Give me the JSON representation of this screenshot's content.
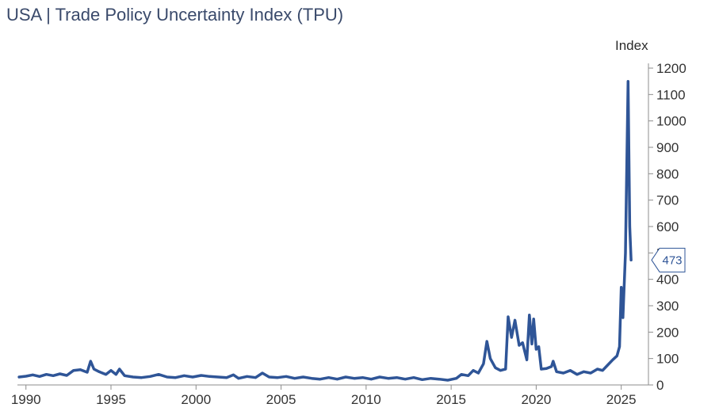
{
  "chart_data": {
    "type": "line",
    "title": "USA | Trade Policy Uncertainty Index (TPU)",
    "ylabel": "Index",
    "xlabel": "",
    "xlim": [
      1989.5,
      2026.6
    ],
    "ylim": [
      0,
      1200
    ],
    "x_ticks": [
      1990,
      1995,
      2000,
      2005,
      2010,
      2015,
      2020,
      2025
    ],
    "y_ticks": [
      0,
      100,
      200,
      300,
      400,
      500,
      600,
      700,
      800,
      900,
      1000,
      1100,
      1200
    ],
    "y_axis_position": "right",
    "grid": false,
    "legend": "none",
    "last_value_label": "473",
    "last_value": 473,
    "series_color": "#2f5597",
    "series": [
      {
        "name": "",
        "points": [
          [
            1989.6,
            30
          ],
          [
            1990.0,
            33
          ],
          [
            1990.4,
            38
          ],
          [
            1990.8,
            32
          ],
          [
            1991.2,
            40
          ],
          [
            1991.6,
            35
          ],
          [
            1992.0,
            42
          ],
          [
            1992.4,
            36
          ],
          [
            1992.8,
            55
          ],
          [
            1993.2,
            58
          ],
          [
            1993.6,
            48
          ],
          [
            1993.8,
            90
          ],
          [
            1994.0,
            60
          ],
          [
            1994.3,
            50
          ],
          [
            1994.7,
            40
          ],
          [
            1995.0,
            55
          ],
          [
            1995.3,
            40
          ],
          [
            1995.5,
            60
          ],
          [
            1995.8,
            35
          ],
          [
            1996.3,
            30
          ],
          [
            1996.8,
            28
          ],
          [
            1997.3,
            32
          ],
          [
            1997.8,
            40
          ],
          [
            1998.3,
            30
          ],
          [
            1998.8,
            28
          ],
          [
            1999.3,
            35
          ],
          [
            1999.8,
            30
          ],
          [
            2000.3,
            36
          ],
          [
            2000.8,
            32
          ],
          [
            2001.3,
            30
          ],
          [
            2001.8,
            28
          ],
          [
            2002.2,
            38
          ],
          [
            2002.5,
            25
          ],
          [
            2003.0,
            32
          ],
          [
            2003.5,
            28
          ],
          [
            2003.9,
            45
          ],
          [
            2004.3,
            30
          ],
          [
            2004.8,
            28
          ],
          [
            2005.3,
            32
          ],
          [
            2005.8,
            25
          ],
          [
            2006.3,
            30
          ],
          [
            2006.8,
            25
          ],
          [
            2007.3,
            22
          ],
          [
            2007.8,
            28
          ],
          [
            2008.3,
            22
          ],
          [
            2008.8,
            30
          ],
          [
            2009.3,
            25
          ],
          [
            2009.8,
            28
          ],
          [
            2010.3,
            22
          ],
          [
            2010.8,
            30
          ],
          [
            2011.3,
            25
          ],
          [
            2011.8,
            28
          ],
          [
            2012.3,
            22
          ],
          [
            2012.8,
            28
          ],
          [
            2013.3,
            20
          ],
          [
            2013.8,
            25
          ],
          [
            2014.3,
            22
          ],
          [
            2014.8,
            18
          ],
          [
            2015.3,
            25
          ],
          [
            2015.6,
            40
          ],
          [
            2016.0,
            35
          ],
          [
            2016.3,
            55
          ],
          [
            2016.6,
            45
          ],
          [
            2016.9,
            80
          ],
          [
            2017.1,
            165
          ],
          [
            2017.3,
            100
          ],
          [
            2017.6,
            65
          ],
          [
            2017.9,
            55
          ],
          [
            2018.2,
            60
          ],
          [
            2018.35,
            258
          ],
          [
            2018.55,
            180
          ],
          [
            2018.75,
            245
          ],
          [
            2019.0,
            150
          ],
          [
            2019.2,
            160
          ],
          [
            2019.45,
            95
          ],
          [
            2019.6,
            265
          ],
          [
            2019.75,
            155
          ],
          [
            2019.85,
            250
          ],
          [
            2020.0,
            135
          ],
          [
            2020.15,
            145
          ],
          [
            2020.3,
            60
          ],
          [
            2020.6,
            62
          ],
          [
            2020.9,
            70
          ],
          [
            2021.0,
            90
          ],
          [
            2021.2,
            50
          ],
          [
            2021.6,
            45
          ],
          [
            2022.0,
            55
          ],
          [
            2022.4,
            40
          ],
          [
            2022.8,
            50
          ],
          [
            2023.2,
            45
          ],
          [
            2023.6,
            60
          ],
          [
            2023.9,
            55
          ],
          [
            2024.2,
            75
          ],
          [
            2024.5,
            95
          ],
          [
            2024.75,
            110
          ],
          [
            2024.9,
            145
          ],
          [
            2025.0,
            370
          ],
          [
            2025.1,
            255
          ],
          [
            2025.25,
            500
          ],
          [
            2025.4,
            1150
          ],
          [
            2025.5,
            600
          ],
          [
            2025.58,
            473
          ]
        ]
      }
    ]
  }
}
